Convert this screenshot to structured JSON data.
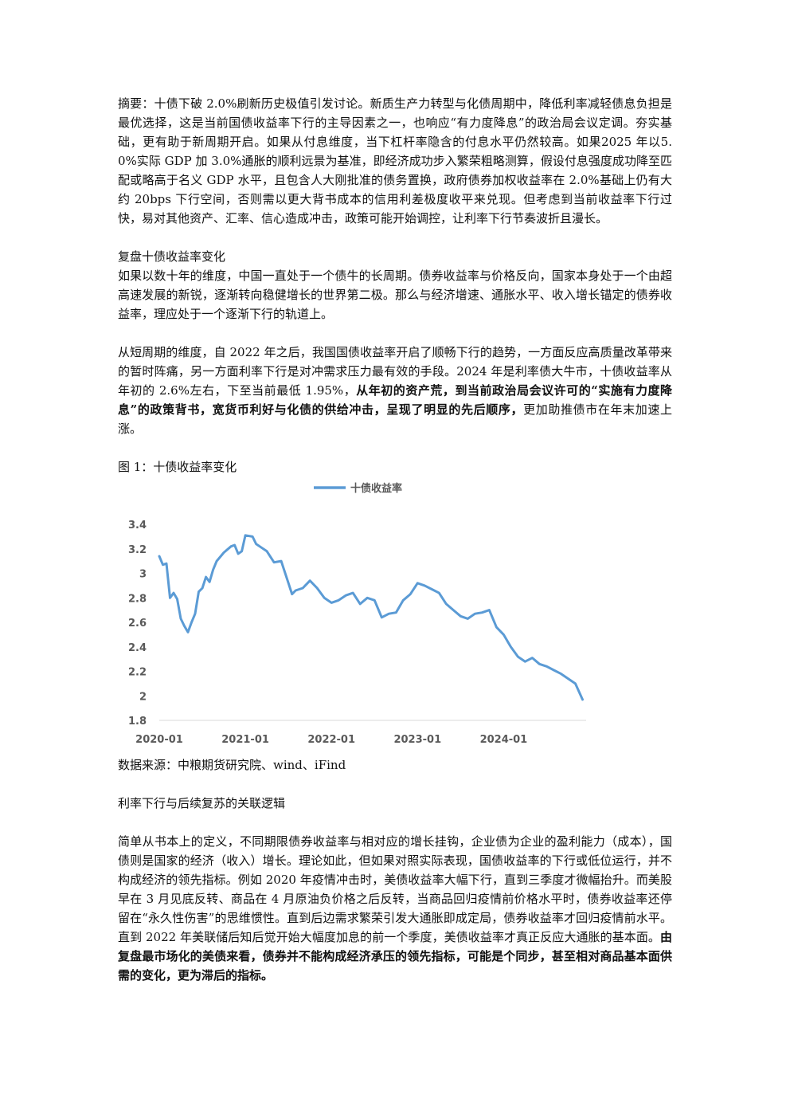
{
  "abstract": "摘要：十债下破 2.0%刷新历史极值引发讨论。新质生产力转型与化债周期中，降低利率减轻债息负担是最优选择，这是当前国债收益率下行的主导因素之一，也响应“有力度降息”的政治局会议定调。夯实基础，更有助于新周期开启。如果从付息维度，当下杠杆率隐含的付息水平仍然较高。如果2025 年以5.0%实际 GDP 加 3.0%通胀的顺利远景为基准，即经济成功步入繁荣粗略测算，假设付息强度成功降至匹配或略高于名义 GDP 水平，且包含人大刚批准的债务置换，政府债券加权收益率在 2.0%基础上仍有大约 20bps 下行空间，否则需以更大背书成本的信用利差极度收平来兑现。但考虑到当前收益率下行过快，易对其他资产、汇率、信心造成冲击，政策可能开始调控，让利率下行节奏波折且漫长。",
  "section1": {
    "heading": "复盘十债收益率变化",
    "p1": "如果以数十年的维度，中国一直处于一个债牛的长周期。债券收益率与价格反向，国家本身处于一个由超高速发展的新锐，逐渐转向稳健增长的世界第二极。那么与经济增速、通胀水平、收入增长锚定的债券收益率，理应处于一个逐渐下行的轨道上。",
    "p2_normal": "从短周期的维度，自 2022 年之后，我国国债收益率开启了顺畅下行的趋势，一方面反应高质量改革带来的暂时阵痛，另一方面利率下行是对冲需求压力最有效的手段。2024 年是利率债大牛市，十债收益率从年初的 2.6%左右，下至当前最低 1.95%，",
    "p2_bold": "从年初的资产荒，到当前政治局会议许可的“实施有力度降息”的政策背书，宽货币利好与化债的供给冲击，呈现了明显的先后顺序，",
    "p2_tail": "更加助推债市在年末加速上涨。"
  },
  "figure": {
    "title": "图 1：十债收益率变化",
    "source": "数据来源：中粮期货研究院、wind、iFind"
  },
  "chart_data": {
    "type": "line",
    "title": "",
    "xlabel": "",
    "ylabel": "",
    "ylim": [
      1.8,
      3.4
    ],
    "yticks": [
      "3.4",
      "3.2",
      "3",
      "2.8",
      "2.6",
      "2.4",
      "2.2",
      "2",
      "1.8"
    ],
    "xticks": [
      "2020-01",
      "2021-01",
      "2022-01",
      "2023-01",
      "2024-01"
    ],
    "legend_position": "top-center",
    "color": "#5b9bd5",
    "series": [
      {
        "name": "十债收益率",
        "x": [
          "2020-01",
          "2020-01",
          "2020-02",
          "2020-02",
          "2020-03",
          "2020-03",
          "2020-04",
          "2020-04",
          "2020-05",
          "2020-05",
          "2020-06",
          "2020-06",
          "2020-07",
          "2020-07",
          "2020-08",
          "2020-08",
          "2020-09",
          "2020-10",
          "2020-11",
          "2020-11",
          "2020-12",
          "2020-12",
          "2021-01",
          "2021-02",
          "2021-02",
          "2021-03",
          "2021-04",
          "2021-05",
          "2021-06",
          "2021-07",
          "2021-07",
          "2021-08",
          "2021-09",
          "2021-10",
          "2021-11",
          "2021-12",
          "2022-01",
          "2022-02",
          "2022-03",
          "2022-04",
          "2022-05",
          "2022-06",
          "2022-07",
          "2022-08",
          "2022-09",
          "2022-10",
          "2022-11",
          "2022-12",
          "2023-01",
          "2023-02",
          "2023-03",
          "2023-04",
          "2023-05",
          "2023-06",
          "2023-07",
          "2023-08",
          "2023-09",
          "2023-10",
          "2023-11",
          "2023-12",
          "2024-01",
          "2024-02",
          "2024-03",
          "2024-04",
          "2024-05",
          "2024-06",
          "2024-07",
          "2024-08",
          "2024-09",
          "2024-10",
          "2024-11",
          "2024-12"
        ],
        "values": [
          3.14,
          3.07,
          3.08,
          2.8,
          2.84,
          2.79,
          2.63,
          2.57,
          2.52,
          2.6,
          2.67,
          2.85,
          2.88,
          2.97,
          2.93,
          3.03,
          3.1,
          3.17,
          3.22,
          3.23,
          3.16,
          3.18,
          3.31,
          3.3,
          3.24,
          3.22,
          3.18,
          3.09,
          3.1,
          2.92,
          2.83,
          2.86,
          2.88,
          2.94,
          2.88,
          2.8,
          2.76,
          2.78,
          2.82,
          2.84,
          2.75,
          2.8,
          2.78,
          2.64,
          2.67,
          2.68,
          2.78,
          2.83,
          2.92,
          2.9,
          2.87,
          2.84,
          2.75,
          2.7,
          2.65,
          2.63,
          2.67,
          2.68,
          2.7,
          2.56,
          2.5,
          2.4,
          2.32,
          2.28,
          2.31,
          2.26,
          2.24,
          2.21,
          2.18,
          2.14,
          2.1,
          1.97
        ]
      }
    ]
  },
  "section2": {
    "heading": "利率下行与后续复苏的关联逻辑",
    "p1_normal": "简单从书本上的定义，不同期限债券收益率与相对应的增长挂钩，企业债为企业的盈利能力（成本），国债则是国家的经济（收入）增长。理论如此，但如果对照实际表现，国债收益率的下行或低位运行，并不构成经济的领先指标。例如 2020 年疫情冲击时，美债收益率大幅下行，直到三季度才微幅抬升。而美股早在 3 月见底反转、商品在 4 月原油负价格之后反转，当商品回归疫情前价格水平时，债券收益率还停留在“永久性伤害”的思维惯性。直到后边需求繁荣引发大通胀即成定局，债券收益率才回归疫情前水平。直到 2022 年美联储后知后觉开始大幅度加息的前一个季度，美债收益率才真正反应大通胀的基本面。",
    "p1_bold": "由复盘最市场化的美债来看，债券并不能构成经济承压的领先指标，可能是个同步，甚至相对商品基本面供需的变化，更为滞后的指标。"
  }
}
